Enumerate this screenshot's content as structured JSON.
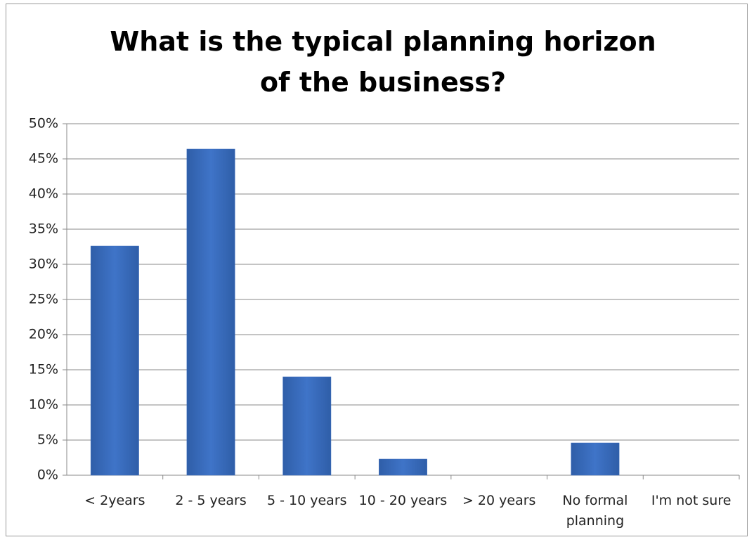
{
  "chart_data": {
    "type": "bar",
    "title": "What is the typical planning horizon of the business?",
    "categories": [
      "< 2years",
      "2 - 5 years",
      "5 - 10 years",
      "10 - 20 years",
      "> 20 years",
      "No formal planning",
      "I'm not sure"
    ],
    "values": [
      32.6,
      46.4,
      14.0,
      2.3,
      0,
      4.6,
      0
    ],
    "color": "#3a6cc0",
    "ylim": [
      0,
      50
    ],
    "yticks": [
      {
        "value": 0,
        "label": "0%"
      },
      {
        "value": 5,
        "label": "5%"
      },
      {
        "value": 10,
        "label": "10%"
      },
      {
        "value": 15,
        "label": "15%"
      },
      {
        "value": 20,
        "label": "20%"
      },
      {
        "value": 25,
        "label": "25%"
      },
      {
        "value": 30,
        "label": "30%"
      },
      {
        "value": 35,
        "label": "35%"
      },
      {
        "value": 40,
        "label": "40%"
      },
      {
        "value": 45,
        "label": "45%"
      },
      {
        "value": 50,
        "label": "50%"
      }
    ],
    "grid": true
  }
}
